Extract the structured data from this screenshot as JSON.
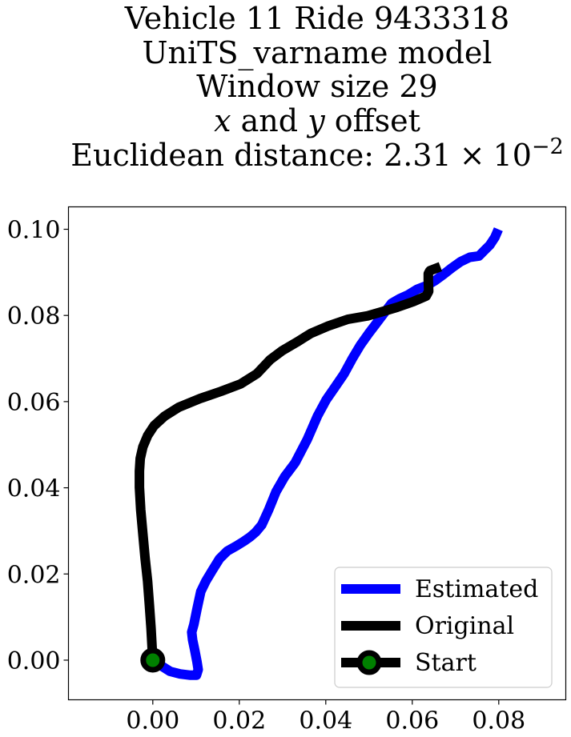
{
  "chart_data": {
    "type": "line",
    "title_lines": [
      "Vehicle 11 Ride 9433318",
      "UniTS_varname model",
      "Window size 29"
    ],
    "title_line4": {
      "x_symbol": "x",
      "middle": " and ",
      "y_symbol": "y",
      "end": " offset"
    },
    "title_line5": {
      "prefix": "Euclidean distance: 2.31",
      "times": "×",
      "base": "10",
      "exponent": "−2"
    },
    "xlim": [
      -0.0195,
      0.0955
    ],
    "ylim": [
      -0.0092,
      0.1052
    ],
    "x_ticks": [
      0.0,
      0.02,
      0.04,
      0.06,
      0.08
    ],
    "x_tick_labels": [
      "0.00",
      "0.02",
      "0.04",
      "0.06",
      "0.08"
    ],
    "y_ticks": [
      0.0,
      0.02,
      0.04,
      0.06,
      0.08,
      0.1
    ],
    "y_tick_labels": [
      "0.00",
      "0.02",
      "0.04",
      "0.06",
      "0.08",
      "0.10"
    ],
    "grid": false,
    "legend_position": "lower right",
    "series": [
      {
        "name": "Estimated",
        "color": "#0000ff",
        "x": [
          0.0,
          0.0021,
          0.004,
          0.0063,
          0.0087,
          0.0101,
          0.0105,
          0.0102,
          0.0097,
          0.0092,
          0.009,
          0.0095,
          0.0102,
          0.0111,
          0.0123,
          0.0138,
          0.0154,
          0.0172,
          0.0193,
          0.0211,
          0.0225,
          0.0238,
          0.0252,
          0.0268,
          0.0285,
          0.0305,
          0.0329,
          0.0357,
          0.0381,
          0.0401,
          0.0421,
          0.0442,
          0.0461,
          0.048,
          0.0499,
          0.0515,
          0.0533,
          0.0552,
          0.0571,
          0.0591,
          0.0612,
          0.0633,
          0.0653,
          0.0672,
          0.0691,
          0.0712,
          0.0733,
          0.0754,
          0.0766,
          0.0779,
          0.0791,
          0.0799
        ],
        "y": [
          0.0,
          -0.0014,
          -0.0026,
          -0.0032,
          -0.0035,
          -0.0035,
          -0.0022,
          -0.0003,
          0.0023,
          0.0047,
          0.0065,
          0.0083,
          0.0118,
          0.0159,
          0.0184,
          0.0209,
          0.0235,
          0.0253,
          0.0265,
          0.0276,
          0.0286,
          0.0297,
          0.0314,
          0.0349,
          0.0391,
          0.0426,
          0.0458,
          0.0512,
          0.0567,
          0.0604,
          0.0633,
          0.0664,
          0.0699,
          0.0731,
          0.0758,
          0.0779,
          0.0803,
          0.0828,
          0.0839,
          0.0848,
          0.0861,
          0.0869,
          0.0881,
          0.0895,
          0.091,
          0.0925,
          0.0935,
          0.0938,
          0.095,
          0.0963,
          0.0981,
          0.1
        ]
      },
      {
        "name": "Original",
        "color": "#000000",
        "x": [
          0.0,
          -0.0004,
          -0.0008,
          -0.0012,
          -0.0018,
          -0.0023,
          -0.0028,
          -0.0031,
          -0.0031,
          -0.0029,
          -0.0023,
          -0.0012,
          0.0003,
          0.0027,
          0.006,
          0.0109,
          0.0158,
          0.0203,
          0.0241,
          0.0271,
          0.0299,
          0.0333,
          0.0365,
          0.0404,
          0.0451,
          0.0497,
          0.0545,
          0.0565,
          0.0602,
          0.0632,
          0.0638,
          0.0637,
          0.0637,
          0.0641,
          0.0665
        ],
        "y": [
          0.0,
          0.0074,
          0.0129,
          0.0183,
          0.0238,
          0.0293,
          0.0349,
          0.0401,
          0.0439,
          0.0468,
          0.0495,
          0.0521,
          0.0544,
          0.0566,
          0.0587,
          0.0607,
          0.0624,
          0.0641,
          0.0665,
          0.0697,
          0.0718,
          0.0738,
          0.0758,
          0.0775,
          0.0791,
          0.0799,
          0.0813,
          0.0819,
          0.0832,
          0.0845,
          0.0856,
          0.0882,
          0.0897,
          0.0904,
          0.0913
        ]
      },
      {
        "name": "Start",
        "color": "#000000",
        "marker_color": "#008000",
        "x": [
          0.0
        ],
        "y": [
          0.0
        ]
      }
    ]
  }
}
